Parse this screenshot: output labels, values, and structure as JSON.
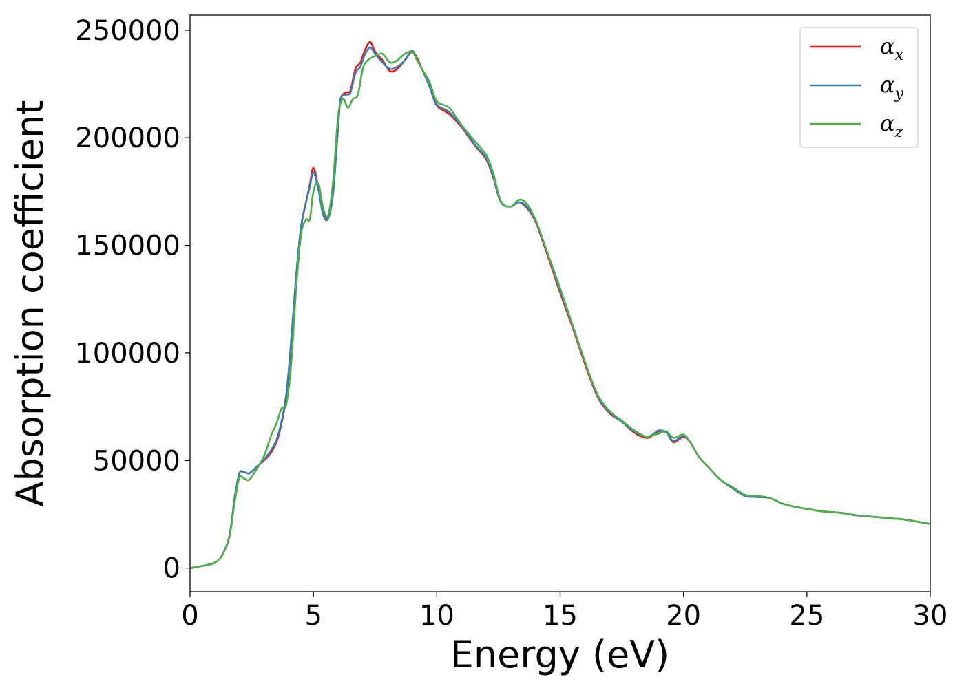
{
  "chart_data": {
    "type": "line",
    "xlabel": "Energy (eV)",
    "ylabel": "Absorption coefficient",
    "xlim": [
      0,
      30
    ],
    "ylim": [
      -11000,
      257000
    ],
    "xticks": [
      0,
      5,
      10,
      15,
      20,
      25,
      30
    ],
    "xtick_labels": [
      "0",
      "5",
      "10",
      "15",
      "20",
      "25",
      "30"
    ],
    "yticks": [
      0,
      50000,
      100000,
      150000,
      200000,
      250000
    ],
    "ytick_labels": [
      "0",
      "50000",
      "100000",
      "150000",
      "200000",
      "250000"
    ],
    "grid": false,
    "legend_position": "top-right",
    "series": [
      {
        "name": "α_x",
        "legend_base": "α",
        "legend_sub": "x",
        "color": "#e41a1c",
        "x": [
          0,
          0.5,
          1.0,
          1.3,
          1.6,
          1.8,
          2.0,
          2.2,
          2.4,
          2.7,
          3.0,
          3.3,
          3.6,
          3.9,
          4.1,
          4.3,
          4.5,
          4.7,
          4.85,
          5.0,
          5.2,
          5.4,
          5.6,
          5.8,
          6.0,
          6.1,
          6.3,
          6.5,
          6.7,
          6.9,
          7.1,
          7.3,
          7.5,
          7.8,
          8.1,
          8.4,
          8.7,
          9.0,
          9.2,
          9.4,
          9.7,
          10.0,
          10.5,
          11.0,
          11.5,
          12.0,
          12.3,
          12.6,
          13.0,
          13.3,
          13.6,
          14.0,
          14.5,
          15.0,
          15.5,
          16.0,
          16.5,
          17.0,
          17.5,
          18.0,
          18.5,
          18.8,
          19.0,
          19.3,
          19.6,
          20.0,
          20.3,
          20.6,
          21.0,
          21.5,
          22.0,
          22.5,
          23.0,
          23.5,
          24.0,
          24.5,
          25.0,
          25.5,
          26.0,
          26.5,
          27.0,
          27.5,
          28.0,
          28.5,
          29.0,
          29.5,
          30.0
        ],
        "y": [
          0,
          1000,
          2500,
          6000,
          15000,
          32000,
          44000,
          44500,
          44000,
          47000,
          50000,
          54000,
          62000,
          80000,
          105000,
          135000,
          158000,
          170000,
          178000,
          186000,
          177000,
          165000,
          163000,
          175000,
          205000,
          218000,
          221000,
          222000,
          232000,
          235000,
          241000,
          244500,
          240000,
          236000,
          231000,
          232000,
          236000,
          240000,
          237000,
          232000,
          224000,
          215000,
          211000,
          205000,
          197000,
          190000,
          181000,
          170000,
          168000,
          170000,
          168000,
          161000,
          145000,
          128000,
          112000,
          95000,
          80000,
          72000,
          68000,
          63000,
          60500,
          62000,
          63500,
          63000,
          58500,
          61000,
          58000,
          52000,
          47000,
          41000,
          37000,
          33500,
          33000,
          32500,
          30000,
          28500,
          27500,
          26500,
          26000,
          25500,
          24500,
          24000,
          23500,
          23000,
          22500,
          21500,
          20500
        ]
      },
      {
        "name": "α_y",
        "legend_base": "α",
        "legend_sub": "y",
        "color": "#377eb8",
        "x": [
          0,
          0.5,
          1.0,
          1.3,
          1.6,
          1.8,
          2.0,
          2.2,
          2.4,
          2.7,
          3.0,
          3.3,
          3.6,
          3.9,
          4.1,
          4.3,
          4.5,
          4.7,
          4.85,
          5.0,
          5.2,
          5.4,
          5.6,
          5.8,
          6.0,
          6.1,
          6.3,
          6.5,
          6.7,
          6.9,
          7.1,
          7.3,
          7.5,
          7.8,
          8.1,
          8.4,
          8.7,
          9.0,
          9.2,
          9.4,
          9.7,
          10.0,
          10.5,
          11.0,
          11.5,
          12.0,
          12.3,
          12.6,
          13.0,
          13.3,
          13.6,
          14.0,
          14.5,
          15.0,
          15.5,
          16.0,
          16.5,
          17.0,
          17.5,
          18.0,
          18.5,
          18.8,
          19.0,
          19.3,
          19.6,
          20.0,
          20.3,
          20.6,
          21.0,
          21.5,
          22.0,
          22.5,
          23.0,
          23.5,
          24.0,
          24.5,
          25.0,
          25.5,
          26.0,
          26.5,
          27.0,
          27.5,
          28.0,
          28.5,
          29.0,
          29.5,
          30.0
        ],
        "y": [
          0,
          1000,
          2500,
          6000,
          15000,
          32000,
          44000,
          44500,
          44000,
          47000,
          50500,
          55000,
          63000,
          81000,
          106000,
          136000,
          159000,
          170000,
          177000,
          184000,
          176000,
          164000,
          162500,
          174000,
          205000,
          218000,
          220000,
          221000,
          230000,
          233000,
          239000,
          242000,
          239000,
          235000,
          232000,
          233000,
          236000,
          240500,
          236000,
          232000,
          224000,
          215500,
          212000,
          205500,
          197500,
          190500,
          181500,
          170000,
          168000,
          170000,
          168500,
          161500,
          146000,
          129000,
          113000,
          96000,
          80500,
          72500,
          68000,
          63500,
          61000,
          62500,
          64000,
          63000,
          59000,
          61500,
          58000,
          52000,
          47000,
          41000,
          37000,
          33500,
          33000,
          32500,
          30000,
          28500,
          27500,
          26500,
          26000,
          25500,
          24500,
          24000,
          23500,
          23000,
          22500,
          21500,
          20500
        ]
      },
      {
        "name": "α_z",
        "legend_base": "α",
        "legend_sub": "z",
        "color": "#4daf4a",
        "x": [
          0,
          0.5,
          1.0,
          1.3,
          1.6,
          1.8,
          2.0,
          2.2,
          2.4,
          2.7,
          3.0,
          3.3,
          3.5,
          3.7,
          3.9,
          4.1,
          4.3,
          4.5,
          4.7,
          4.85,
          5.0,
          5.2,
          5.4,
          5.6,
          5.8,
          6.0,
          6.2,
          6.4,
          6.6,
          6.8,
          7.0,
          7.2,
          7.5,
          7.8,
          8.1,
          8.4,
          8.7,
          9.0,
          9.2,
          9.4,
          9.7,
          10.0,
          10.5,
          11.0,
          11.5,
          12.0,
          12.3,
          12.6,
          13.0,
          13.3,
          13.6,
          14.0,
          14.5,
          15.0,
          15.5,
          16.0,
          16.5,
          17.0,
          17.5,
          18.0,
          18.5,
          18.8,
          19.0,
          19.3,
          19.6,
          20.0,
          20.3,
          20.6,
          21.0,
          21.5,
          22.0,
          22.5,
          23.0,
          23.5,
          24.0,
          24.5,
          25.0,
          25.5,
          26.0,
          26.5,
          27.0,
          27.5,
          28.0,
          28.5,
          29.0,
          29.5,
          30.0
        ],
        "y": [
          0,
          1000,
          2500,
          6000,
          14500,
          30000,
          42000,
          41500,
          41000,
          46000,
          52000,
          62000,
          67000,
          74000,
          76000,
          95000,
          130000,
          155000,
          162000,
          162000,
          175000,
          179000,
          167000,
          164000,
          180000,
          210000,
          218000,
          214000,
          218000,
          220000,
          232000,
          236000,
          238000,
          239000,
          235000,
          236000,
          239000,
          240000,
          236000,
          232000,
          226000,
          217000,
          214000,
          206000,
          199000,
          192000,
          183000,
          170500,
          168000,
          171000,
          170000,
          162000,
          146000,
          130000,
          113000,
          96000,
          81000,
          73000,
          68500,
          64000,
          61000,
          62000,
          62500,
          63500,
          60500,
          62000,
          58000,
          52000,
          47000,
          41000,
          37500,
          34000,
          33500,
          32500,
          30000,
          28500,
          27500,
          26500,
          26000,
          25500,
          24500,
          24000,
          23500,
          23000,
          22500,
          21500,
          20500
        ]
      }
    ]
  }
}
